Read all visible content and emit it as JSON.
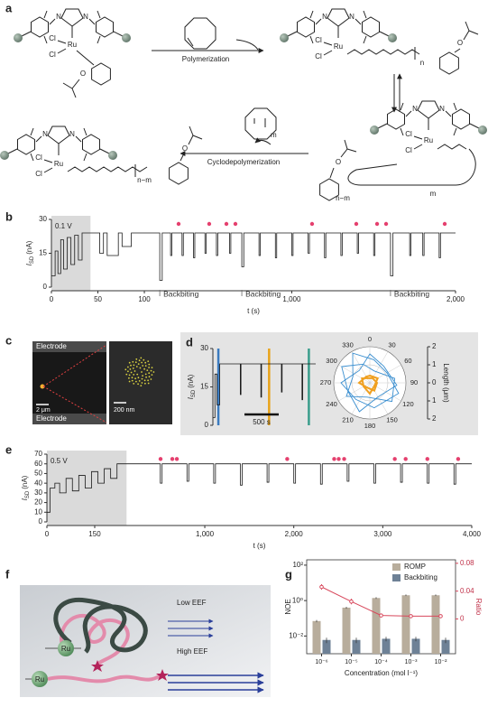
{
  "panel_labels": {
    "a": "a",
    "b": "b",
    "c": "c",
    "d": "d",
    "e": "e",
    "f": "f",
    "g": "g"
  },
  "scheme": {
    "ru": "Ru",
    "cl": "Cl",
    "n": "N",
    "o": "O",
    "polymerization": "Polymerization",
    "cyclodepolymerization": "Cyclodepolymerization",
    "n_idx": "n",
    "m_idx": "m",
    "nm_idx": "n−m"
  },
  "panel_c": {
    "electrode_top": "Electrode",
    "electrode_bottom": "Electrode",
    "scale_left": "2 μm",
    "scale_right": "200 nm"
  },
  "panel_f": {
    "low": "Low EEF",
    "high": "High EEF",
    "ru": "Ru"
  },
  "chart_data": [
    {
      "type": "line",
      "annotation": "0.1 V",
      "ylabel": {
        "symbol": "I",
        "sub": "SD",
        "unit": "(nA)"
      },
      "xlabel": "t (s)",
      "x": [
        0,
        4,
        4,
        7,
        7,
        10,
        10,
        13,
        13,
        17,
        17,
        21,
        21,
        25,
        25,
        29,
        29,
        33,
        33,
        38,
        38,
        45,
        52,
        52,
        56,
        56,
        60,
        60,
        72,
        72,
        76,
        76,
        86,
        86,
        100,
        150,
        194,
        194,
        209,
        209,
        260,
        260,
        268,
        268,
        330,
        330,
        338,
        338,
        400,
        400,
        408,
        408,
        470,
        470,
        478,
        478,
        540,
        540,
        548,
        548,
        620,
        620,
        628,
        628,
        695,
        695,
        707,
        707,
        800,
        800,
        808,
        808,
        900,
        900,
        908,
        908,
        1000,
        1000,
        1008,
        1008,
        1100,
        1100,
        1108,
        1108,
        1200,
        1200,
        1208,
        1208,
        1300,
        1300,
        1308,
        1308,
        1400,
        1400,
        1408,
        1408,
        1500,
        1500,
        1508,
        1508,
        1603,
        1603,
        1618,
        1618,
        1720,
        1720,
        1728,
        1728,
        1800,
        1800,
        1808,
        1808,
        1900,
        1900,
        1908,
        1908,
        2000
      ],
      "series": [
        {
          "color": "#1a1a1a",
          "values": [
            5,
            5,
            16,
            16,
            6,
            6,
            21,
            21,
            8,
            8,
            22,
            22,
            10,
            10,
            23,
            23,
            12,
            12,
            24,
            24,
            24,
            24,
            24,
            15,
            15,
            24,
            24,
            14,
            14,
            24,
            24,
            18,
            18,
            24,
            24,
            24,
            24,
            3,
            3,
            24,
            24,
            14,
            14,
            24,
            24,
            14,
            14,
            24,
            24,
            13,
            13,
            24,
            24,
            15,
            15,
            24,
            24,
            14,
            14,
            24,
            24,
            15,
            15,
            24,
            24,
            9,
            9,
            24,
            24,
            14,
            14,
            24,
            24,
            13,
            13,
            24,
            24,
            14,
            14,
            24,
            24,
            15,
            15,
            24,
            24,
            13,
            13,
            24,
            24,
            14,
            14,
            24,
            24,
            15,
            15,
            24,
            24,
            14,
            14,
            24,
            24,
            5,
            5,
            24,
            24,
            14,
            14,
            24,
            24,
            14,
            14,
            24,
            24,
            13,
            13,
            24,
            24
          ]
        }
      ],
      "xlim": [
        0,
        2000
      ],
      "xbreak": 100,
      "xticks": [
        0,
        50,
        100,
        {
          "value": 1000,
          "label": "1,000"
        },
        {
          "value": 2000,
          "label": "2,000"
        }
      ],
      "ylim": [
        0,
        30
      ],
      "yticks": [
        0,
        15,
        30
      ],
      "shade": [
        0,
        42
      ],
      "markers": {
        "color": "#e5406e",
        "x": [
          309,
          496,
          601,
          656,
          1124,
          1394,
          1521,
          1576,
          1934
        ],
        "y": [
          28,
          28,
          28,
          28,
          28,
          28,
          28,
          28,
          28
        ]
      },
      "annotations": [
        {
          "text": "Backbiting",
          "x": 194
        },
        {
          "text": "Backbiting",
          "x": 695
        },
        {
          "text": "Backbiting",
          "x": 1603
        }
      ]
    },
    {
      "type": "line",
      "ylabel": {
        "symbol": "I",
        "sub": "SD",
        "unit": "(nA)"
      },
      "x": [
        0,
        30,
        30,
        60,
        60,
        100,
        100,
        400,
        400,
        410,
        410,
        700,
        700,
        710,
        710,
        1000,
        1000,
        1010,
        1010,
        1300,
        1300,
        1310,
        1310,
        1500
      ],
      "series": [
        {
          "color": "#1a1a1a",
          "values": [
            3,
            3,
            20,
            20,
            8,
            8,
            24,
            24,
            12,
            12,
            24,
            24,
            11,
            11,
            24,
            24,
            13,
            13,
            24,
            24,
            10,
            10,
            24,
            24
          ]
        }
      ],
      "xlim": [
        0,
        1500
      ],
      "ylim": [
        0,
        30
      ],
      "yticks": [
        0,
        15,
        30
      ],
      "highlights": [
        {
          "x": 80,
          "color": "#3b7bbf"
        },
        {
          "x": 820,
          "color": "#e8a31a"
        },
        {
          "x": 1400,
          "color": "#3a9e8c"
        }
      ],
      "scalebar": {
        "value": 500,
        "label": "500 s"
      }
    },
    {
      "type": "polar",
      "ylabel": "Length (μm)",
      "angle_ticks": [
        0,
        30,
        60,
        90,
        120,
        150,
        180,
        210,
        240,
        270,
        300,
        330
      ],
      "ylim": [
        -2,
        2
      ],
      "yticks": [
        2,
        1,
        0,
        {
          "value": -1,
          "label": "1"
        },
        {
          "value": -2,
          "label": "2"
        }
      ],
      "series": [
        {
          "color": "#3b8fd0",
          "theta": [
            0,
            40,
            95,
            150,
            200,
            250,
            300,
            340,
            20,
            80,
            130,
            190,
            240,
            290,
            330,
            10,
            60,
            110,
            170,
            220,
            270,
            320
          ],
          "values": [
            1.6,
            1.2,
            1.5,
            0.9,
            1.7,
            1.3,
            1.8,
            1.1,
            0.7,
            1.4,
            1.6,
            0.8,
            1.5,
            1.0,
            1.9,
            1.3,
            1.1,
            1.7,
            1.4,
            1.2,
            1.6,
            0.9
          ]
        },
        {
          "color": "#f0a020",
          "theta": [
            0,
            60,
            120,
            180,
            240,
            300,
            30,
            90,
            150,
            210,
            270,
            330
          ],
          "values": [
            0.4,
            0.5,
            0.3,
            0.6,
            0.4,
            0.5,
            0.3,
            0.4,
            0.5,
            0.3,
            0.6,
            0.4
          ]
        }
      ]
    },
    {
      "type": "line",
      "annotation": "0.5 V",
      "ylabel": {
        "symbol": "I",
        "sub": "SD",
        "unit": "(nA)"
      },
      "xlabel": "t (s)",
      "x": [
        0,
        10,
        10,
        25,
        25,
        40,
        40,
        60,
        60,
        80,
        80,
        100,
        100,
        120,
        120,
        140,
        140,
        160,
        160,
        180,
        180,
        200,
        200,
        220,
        220,
        250,
        500,
        500,
        520,
        520,
        800,
        800,
        820,
        820,
        1100,
        1100,
        1120,
        1120,
        1400,
        1400,
        1420,
        1420,
        1700,
        1700,
        1720,
        1720,
        2000,
        2000,
        2020,
        2020,
        2300,
        2300,
        2320,
        2320,
        2600,
        2600,
        2620,
        2620,
        2900,
        2900,
        2920,
        2920,
        3200,
        3200,
        3220,
        3220,
        3500,
        3500,
        3520,
        3520,
        3800,
        3800,
        3820,
        3820,
        4000
      ],
      "series": [
        {
          "color": "#1a1a1a",
          "values": [
            10,
            10,
            35,
            35,
            40,
            40,
            30,
            30,
            45,
            45,
            32,
            32,
            48,
            48,
            35,
            35,
            52,
            52,
            40,
            40,
            55,
            55,
            45,
            45,
            60,
            60,
            60,
            40,
            40,
            60,
            60,
            42,
            42,
            60,
            60,
            40,
            40,
            60,
            60,
            38,
            38,
            60,
            60,
            41,
            41,
            60,
            60,
            40,
            40,
            60,
            60,
            39,
            39,
            60,
            60,
            42,
            42,
            60,
            60,
            40,
            40,
            60,
            60,
            41,
            41,
            60,
            60,
            40,
            40,
            60,
            60,
            39,
            39,
            60,
            60
          ]
        }
      ],
      "xlim": [
        0,
        4000
      ],
      "xbreak": 300,
      "xticks": [
        0,
        150,
        {
          "value": 1000,
          "label": "1,000"
        },
        {
          "value": 2000,
          "label": "2,000"
        },
        {
          "value": 3000,
          "label": "3,000"
        },
        {
          "value": 4000,
          "label": "4,000"
        }
      ],
      "ylim": [
        0,
        70
      ],
      "yticks": [
        0,
        10,
        20,
        30,
        40,
        50,
        60,
        70
      ],
      "shade": [
        0,
        250
      ],
      "markers": {
        "color": "#e5406e",
        "x": [
          503,
          635,
          686,
          1926,
          2454,
          2505,
          2566,
          3135,
          3257,
          3501,
          3847
        ],
        "y": [
          65,
          65,
          65,
          65,
          65,
          65,
          65,
          65,
          65,
          65,
          65
        ]
      }
    },
    {
      "type": "bar",
      "xlabel": "Concentration (mol l⁻¹)",
      "ylabel": "NOE",
      "y2label": "Ratio",
      "categories": [
        "10⁻⁶",
        "10⁻⁵",
        "10⁻⁴",
        "10⁻³",
        "10⁻²"
      ],
      "log_y": true,
      "ylim": [
        0.001,
        200
      ],
      "yticks": [
        {
          "value": 0.01,
          "label": "10⁻²"
        },
        {
          "value": 1,
          "label": "10⁰"
        },
        {
          "value": 100,
          "label": "10²"
        }
      ],
      "y2lim": [
        -0.05,
        0.085
      ],
      "y2ticks": [
        0,
        0.04,
        0.08
      ],
      "legend": "upper right",
      "series": [
        {
          "name": "ROMP",
          "color": "#b8ad9c",
          "values": [
            0.07,
            0.4,
            1.4,
            2,
            2
          ],
          "errors": [
            0.01,
            0.05,
            0.15,
            0.2,
            0.2
          ]
        },
        {
          "name": "Backbiting",
          "color": "#6e8196",
          "values": [
            0.006,
            0.006,
            0.007,
            0.007,
            0.006
          ],
          "errors": [
            0.002,
            0.002,
            0.002,
            0.002,
            0.002
          ]
        },
        {
          "type": "line",
          "axis": "y2",
          "color": "#d8485c",
          "values": [
            0.046,
            0.025,
            0.005,
            0.004,
            0.004
          ],
          "errors": [
            0.004,
            0.004,
            0.002,
            0.002,
            0.002
          ]
        }
      ]
    }
  ]
}
